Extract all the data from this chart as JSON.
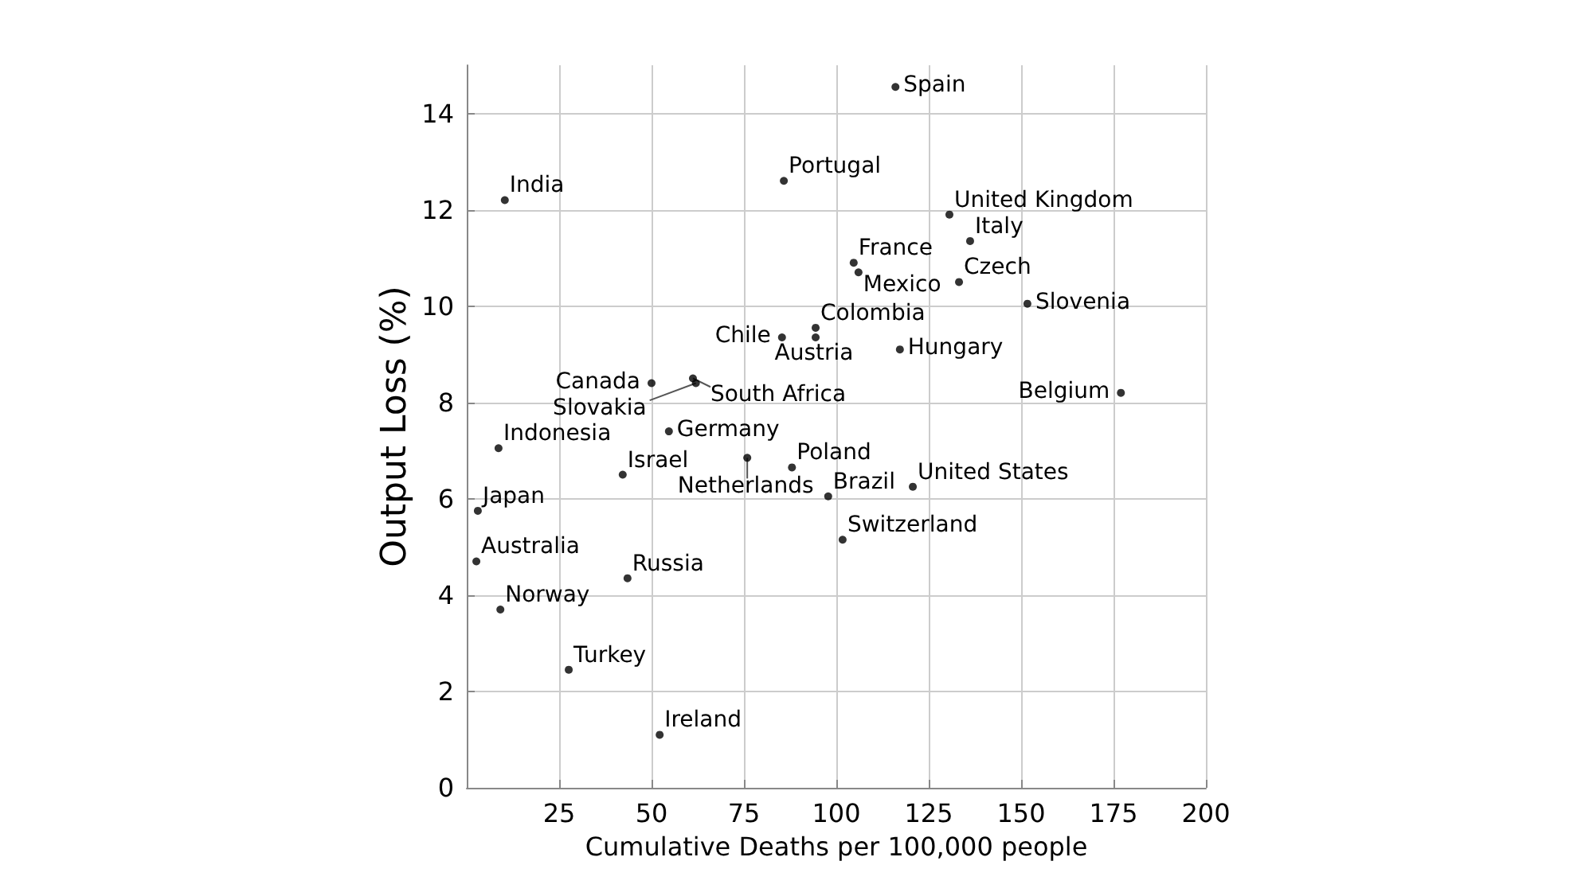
{
  "chart_data": {
    "type": "scatter",
    "xlabel": "Cumulative Deaths per 100,000 people",
    "ylabel": "Output Loss (%)",
    "x": [
      116,
      85.8,
      10.3,
      130.6,
      136.2,
      104.7,
      106,
      133.2,
      151.7,
      94.4,
      94.4,
      85.3,
      117.2,
      50,
      61.2,
      62,
      177,
      54.7,
      8.6,
      75.9,
      88,
      42.2,
      97.8,
      120.7,
      3,
      101.7,
      2.6,
      43.5,
      9.1,
      27.6,
      52.2
    ],
    "values": [
      14.55,
      12.6,
      12.2,
      11.9,
      11.35,
      10.9,
      10.7,
      10.5,
      10.05,
      9.55,
      9.35,
      9.35,
      9.1,
      8.4,
      8.5,
      8.4,
      8.2,
      7.4,
      7.05,
      6.85,
      6.65,
      6.5,
      6.05,
      6.25,
      5.75,
      5.15,
      4.7,
      4.35,
      3.7,
      2.45,
      1.1
    ],
    "color": "#000000",
    "marker": "circle",
    "annotations": [
      {
        "text": "Spain",
        "x": 116,
        "y": 14.55
      },
      {
        "text": "Portugal",
        "x": 85.8,
        "y": 12.6
      },
      {
        "text": "India",
        "x": 10.3,
        "y": 12.2
      },
      {
        "text": "United Kingdom",
        "x": 130.6,
        "y": 11.9
      },
      {
        "text": "Italy",
        "x": 136.2,
        "y": 11.35
      },
      {
        "text": "France",
        "x": 104.7,
        "y": 10.9
      },
      {
        "text": "Mexico",
        "x": 106,
        "y": 10.7
      },
      {
        "text": "Czech",
        "x": 133.2,
        "y": 10.5
      },
      {
        "text": "Slovenia",
        "x": 151.7,
        "y": 10.05
      },
      {
        "text": "Colombia",
        "x": 94.4,
        "y": 9.55
      },
      {
        "text": "Austria",
        "x": 94.4,
        "y": 9.35
      },
      {
        "text": "Chile",
        "x": 85.3,
        "y": 9.35
      },
      {
        "text": "Hungary",
        "x": 117.2,
        "y": 9.1
      },
      {
        "text": "Canada",
        "x": 50,
        "y": 8.4
      },
      {
        "text": "South Africa",
        "x": 61.2,
        "y": 8.5
      },
      {
        "text": "Slovakia",
        "x": 62,
        "y": 8.4
      },
      {
        "text": "Belgium",
        "x": 177,
        "y": 8.2
      },
      {
        "text": "Germany",
        "x": 54.7,
        "y": 7.4
      },
      {
        "text": "Indonesia",
        "x": 8.6,
        "y": 7.05
      },
      {
        "text": "Netherlands",
        "x": 75.9,
        "y": 6.85
      },
      {
        "text": "Poland",
        "x": 88,
        "y": 6.65
      },
      {
        "text": "Israel",
        "x": 42.2,
        "y": 6.5
      },
      {
        "text": "Brazil",
        "x": 97.8,
        "y": 6.05
      },
      {
        "text": "United States",
        "x": 120.7,
        "y": 6.25
      },
      {
        "text": "Japan",
        "x": 3,
        "y": 5.75
      },
      {
        "text": "Switzerland",
        "x": 101.7,
        "y": 5.15
      },
      {
        "text": "Australia",
        "x": 2.6,
        "y": 4.7
      },
      {
        "text": "Russia",
        "x": 43.5,
        "y": 4.35
      },
      {
        "text": "Norway",
        "x": 9.1,
        "y": 3.7
      },
      {
        "text": "Turkey",
        "x": 27.6,
        "y": 2.45
      },
      {
        "text": "Ireland",
        "x": 52.2,
        "y": 1.1
      }
    ],
    "xlim": [
      0,
      200
    ],
    "xticks": [
      25,
      50,
      75,
      100,
      125,
      150,
      175,
      200
    ],
    "ylim": [
      0,
      15
    ],
    "yticks": [
      0,
      2,
      4,
      6,
      8,
      10,
      12,
      14
    ],
    "grid": true
  }
}
